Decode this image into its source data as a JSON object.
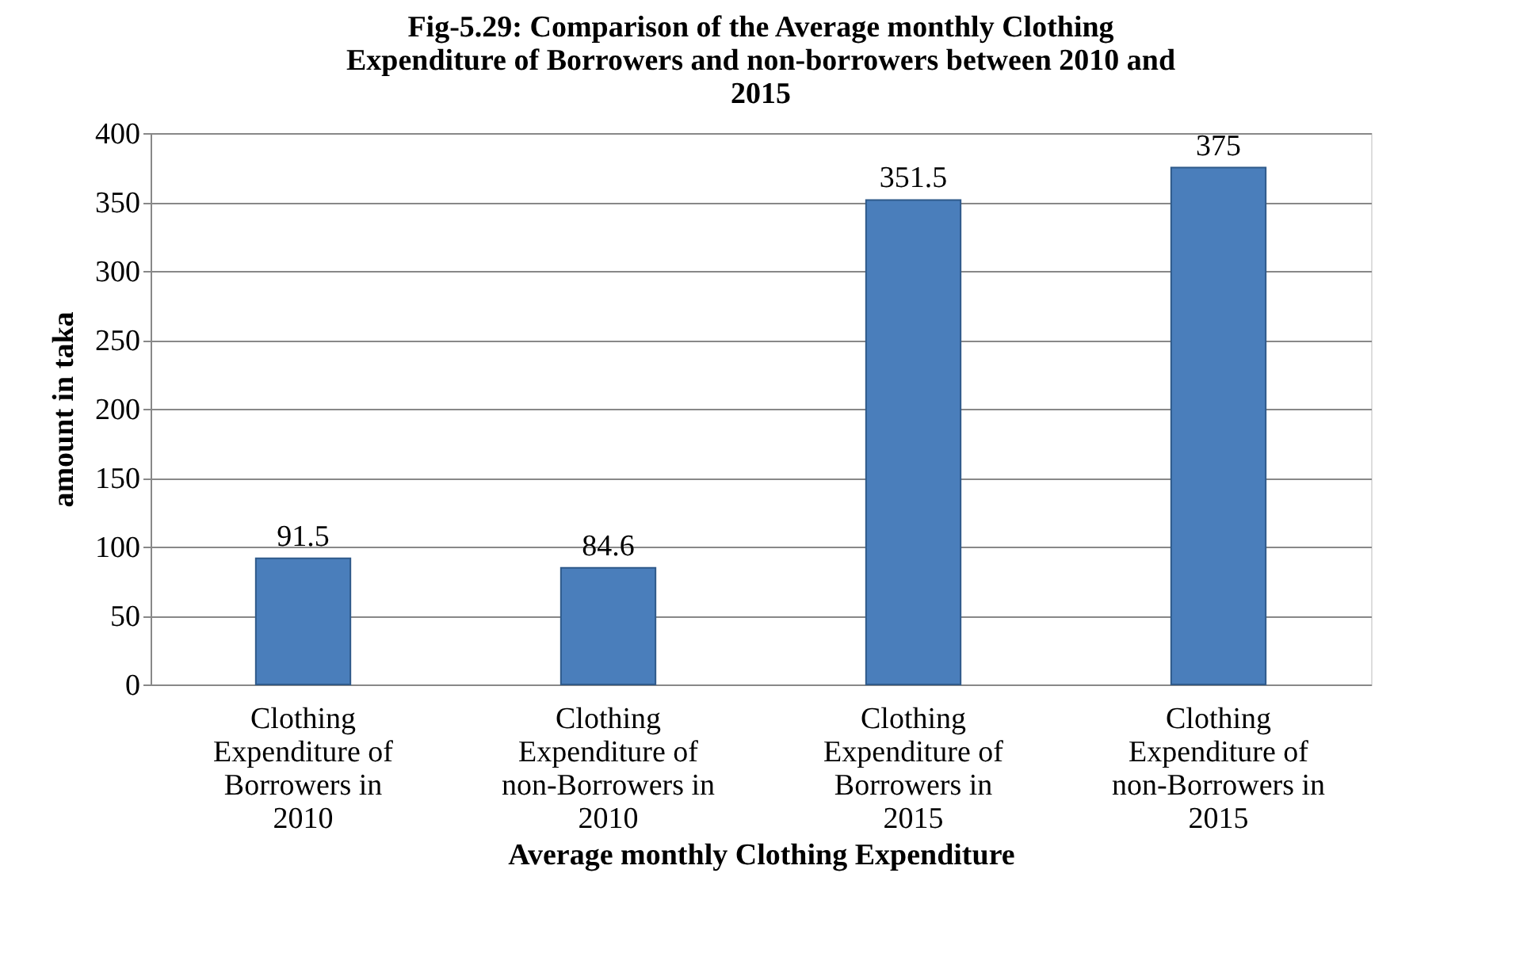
{
  "chart_data": {
    "type": "bar",
    "title": "Fig-5.29: Comparison of the Average monthly Clothing Expenditure of Borrowers and non-borrowers between 2010 and 2015",
    "xlabel": "Average monthly Clothing Expenditure",
    "ylabel": "amount in taka",
    "categories": [
      "Clothing Expenditure of Borrowers in 2010",
      "Clothing Expenditure of non-Borrowers in 2010",
      "Clothing Expenditure of Borrowers in 2015",
      "Clothing Expenditure of non-Borrowers in 2015"
    ],
    "values": [
      91.5,
      84.6,
      351.5,
      375
    ],
    "color": "#4a7ebb",
    "ylim": [
      0,
      400
    ],
    "yticks": [
      0,
      50,
      100,
      150,
      200,
      250,
      300,
      350,
      400
    ],
    "grid": "y",
    "data_labels": true
  }
}
